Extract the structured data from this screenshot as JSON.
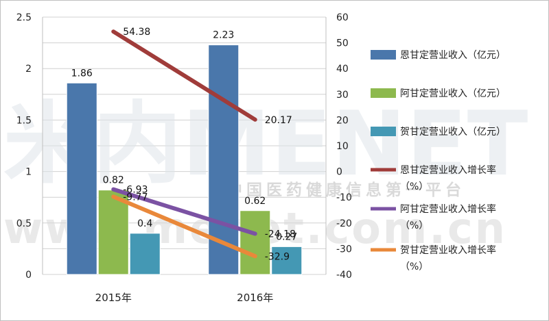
{
  "chart_data": {
    "type": "bar",
    "categories": [
      "2015年",
      "2016年"
    ],
    "series": [
      {
        "name": "恩甘定营业收入（亿元）",
        "kind": "bar",
        "axis": "left",
        "color": "#4a77ab",
        "values": [
          1.86,
          2.23
        ],
        "labels": [
          "1.86",
          "2.23"
        ]
      },
      {
        "name": "阿甘定营业收入（亿元）",
        "kind": "bar",
        "axis": "left",
        "color": "#8db94e",
        "values": [
          0.82,
          0.62
        ],
        "labels": [
          "0.82",
          "0.62"
        ]
      },
      {
        "name": "贺甘定营业收入（亿元）",
        "kind": "bar",
        "axis": "left",
        "color": "#4498b4",
        "values": [
          0.4,
          0.27
        ],
        "labels": [
          "0.4",
          "0.27"
        ]
      },
      {
        "name": "恩甘定营业收入增长率（%）",
        "kind": "line",
        "axis": "right",
        "color": "#a03c3a",
        "values": [
          54.38,
          20.17
        ],
        "labels": [
          "54.38",
          "20.17"
        ]
      },
      {
        "name": "阿甘定营业收入增长率（%）",
        "kind": "line",
        "axis": "right",
        "color": "#7b52a3",
        "values": [
          -6.93,
          -24.18
        ],
        "labels": [
          "-6.93",
          "-24.18"
        ]
      },
      {
        "name": "贺甘定营业收入增长率（%）",
        "kind": "line",
        "axis": "right",
        "color": "#e9883a",
        "values": [
          -9.77,
          -32.9
        ],
        "labels": [
          "-9.77",
          "-32.9"
        ]
      }
    ],
    "ylim_left": [
      0,
      2.5
    ],
    "yticks_left": [
      "0",
      "0.5",
      "1",
      "1.5",
      "2",
      "2.5"
    ],
    "ylim_right": [
      -40,
      60
    ],
    "yticks_right": [
      "-40",
      "-30",
      "-20",
      "-10",
      "0",
      "10",
      "20",
      "30",
      "40",
      "50",
      "60"
    ],
    "grid": true,
    "legend": "right",
    "legend_lines": [
      [
        "恩甘定营业收入（亿元）"
      ],
      [
        "阿甘定营业收入（亿元）"
      ],
      [
        "贺甘定营业收入（亿元）"
      ],
      [
        "恩甘定营业收入增长率",
        "（%）"
      ],
      [
        "阿甘定营业收入增长率",
        "（%）"
      ],
      [
        "贺甘定营业收入增长率",
        "（%）"
      ]
    ]
  },
  "watermark": {
    "logo": "米内MENET",
    "tagline": "中国医药健康信息第一平台",
    "url": "www.menet.com.cn"
  }
}
